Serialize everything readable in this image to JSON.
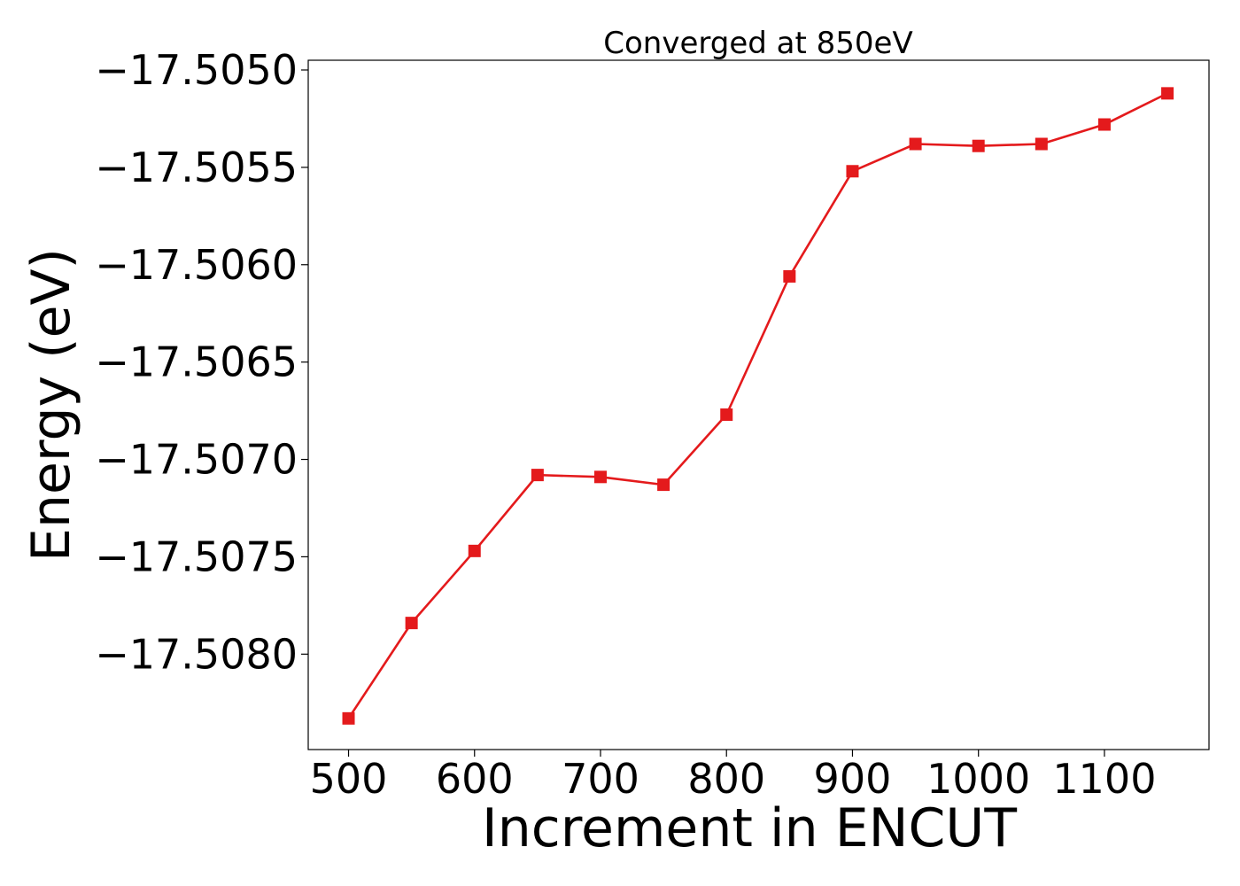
{
  "chart_data": {
    "type": "line",
    "title": "Converged at 850eV",
    "xlabel": "Increment in ENCUT",
    "ylabel": "Energy (eV)",
    "x": [
      500,
      550,
      600,
      650,
      700,
      750,
      800,
      850,
      900,
      950,
      1000,
      1050,
      1100,
      1150
    ],
    "series": [
      {
        "values": [
          -17.50833,
          -17.50784,
          -17.50747,
          -17.50708,
          -17.50709,
          -17.50713,
          -17.50677,
          -17.50606,
          -17.50552,
          -17.50538,
          -17.50539,
          -17.50538,
          -17.50528,
          -17.50512
        ],
        "color": "#e41a1c",
        "marker": "square"
      }
    ],
    "xlim": [
      468,
      1183
    ],
    "ylim": [
      -17.50849,
      -17.50495
    ],
    "xticks": [
      500,
      600,
      700,
      800,
      900,
      1000,
      1100
    ],
    "xtick_labels": [
      "500",
      "600",
      "700",
      "800",
      "900",
      "1000",
      "1100"
    ],
    "yticks": [
      -17.505,
      -17.5055,
      -17.506,
      -17.5065,
      -17.507,
      -17.5075,
      -17.508
    ],
    "ytick_labels": [
      "−17.5050",
      "−17.5055",
      "−17.5060",
      "−17.5065",
      "−17.5070",
      "−17.5075",
      "−17.5080"
    ],
    "grid": false,
    "legend": "none"
  }
}
